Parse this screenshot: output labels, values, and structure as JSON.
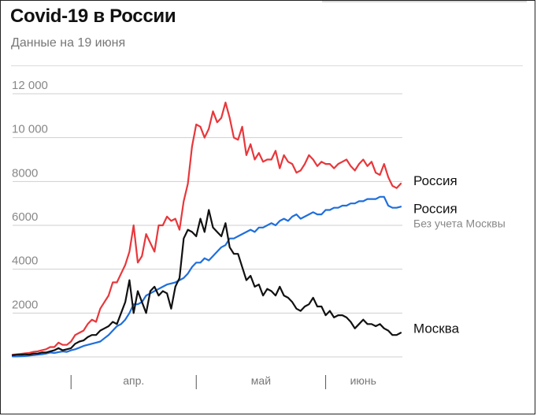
{
  "title": "Covid-19 в России",
  "subtitle": "Данные на 19 июня",
  "chart_data": {
    "type": "line",
    "ylim": [
      0,
      12000
    ],
    "yticks": [
      {
        "value": 2000,
        "label": "2000"
      },
      {
        "value": 4000,
        "label": "4000"
      },
      {
        "value": 6000,
        "label": "6000"
      },
      {
        "value": 8000,
        "label": "8000"
      },
      {
        "value": 10000,
        "label": "10 000"
      },
      {
        "value": 12000,
        "label": "12 000"
      }
    ],
    "x_start": "2020-03-18",
    "x_end": "2020-06-19",
    "month_labels": [
      {
        "label": "апр.",
        "start": "2020-04-01",
        "end": "2020-05-01"
      },
      {
        "label": "май",
        "start": "2020-05-01",
        "end": "2020-06-01"
      },
      {
        "label": "июнь",
        "start": "2020-06-01",
        "end": "2020-06-19"
      }
    ],
    "grid": true,
    "series": [
      {
        "name": "Россия",
        "color": "#e8373b",
        "values": [
          100,
          120,
          140,
          160,
          180,
          230,
          250,
          300,
          350,
          450,
          450,
          650,
          550,
          550,
          700,
          1000,
          1100,
          1200,
          1500,
          1700,
          1600,
          2200,
          2500,
          2800,
          3400,
          3400,
          3800,
          4200,
          4800,
          6000,
          4300,
          4600,
          5600,
          5200,
          4800,
          6000,
          6000,
          6400,
          6200,
          6300,
          5800,
          7100,
          7900,
          9600,
          10600,
          10500,
          10000,
          10400,
          11200,
          10700,
          10900,
          11600,
          10900,
          10000,
          9900,
          10500,
          9200,
          9700,
          9000,
          9300,
          8900,
          9000,
          9000,
          9400,
          8600,
          9200,
          8900,
          8800,
          8400,
          8500,
          8800,
          9200,
          9000,
          8700,
          8900,
          8800,
          8800,
          8600,
          8800,
          8900,
          9000,
          8700,
          8500,
          8800,
          9000,
          8700,
          8900,
          8400,
          8300,
          8800,
          8200,
          7800,
          7700,
          7900
        ]
      },
      {
        "name": "Россия",
        "note": "Без учета Москвы",
        "color": "#1f6fdc",
        "values": [
          20,
          20,
          30,
          40,
          60,
          80,
          100,
          120,
          150,
          200,
          180,
          220,
          250,
          230,
          300,
          350,
          420,
          500,
          550,
          600,
          650,
          700,
          850,
          1000,
          1200,
          1400,
          1500,
          1700,
          2000,
          2400,
          2400,
          2500,
          2800,
          2900,
          3000,
          3100,
          3200,
          3300,
          3350,
          3400,
          3500,
          3600,
          3800,
          4100,
          4300,
          4300,
          4500,
          4400,
          4600,
          4800,
          5000,
          5100,
          5400,
          5400,
          5500,
          5600,
          5700,
          5800,
          5700,
          5900,
          5900,
          6000,
          6100,
          6000,
          6200,
          6300,
          6200,
          6400,
          6500,
          6300,
          6400,
          6500,
          6600,
          6500,
          6500,
          6700,
          6700,
          6800,
          6800,
          6900,
          6900,
          7000,
          7000,
          7100,
          7100,
          7200,
          7200,
          7200,
          7300,
          7300,
          6900,
          6800,
          6800,
          6850
        ]
      },
      {
        "name": "Москва",
        "color": "#111111",
        "values": [
          80,
          100,
          100,
          120,
          100,
          150,
          150,
          200,
          200,
          250,
          300,
          400,
          300,
          350,
          400,
          600,
          700,
          750,
          900,
          1000,
          1000,
          1200,
          1300,
          1400,
          1600,
          1500,
          2000,
          2500,
          3500,
          2000,
          3000,
          2500,
          2000,
          3000,
          3200,
          2800,
          3000,
          2900,
          2200,
          3200,
          3600,
          5400,
          5800,
          5700,
          5500,
          6300,
          5700,
          6700,
          5900,
          5700,
          5500,
          6100,
          5000,
          4700,
          4700,
          4100,
          3500,
          3700,
          3200,
          3300,
          2800,
          3100,
          3000,
          2800,
          3200,
          2800,
          2700,
          2500,
          2200,
          2100,
          2300,
          2400,
          2700,
          2300,
          2300,
          1900,
          2100,
          1800,
          1900,
          1900,
          1800,
          1600,
          1300,
          1500,
          1700,
          1500,
          1500,
          1400,
          1500,
          1300,
          1200,
          1000,
          1000,
          1100
        ]
      }
    ],
    "annotations": [
      {
        "text": "Россия",
        "series": 0
      },
      {
        "text": "Россия",
        "series": 1
      },
      {
        "text": "Без учета Москвы",
        "series": 1
      },
      {
        "text": "Москва",
        "series": 2
      }
    ]
  }
}
